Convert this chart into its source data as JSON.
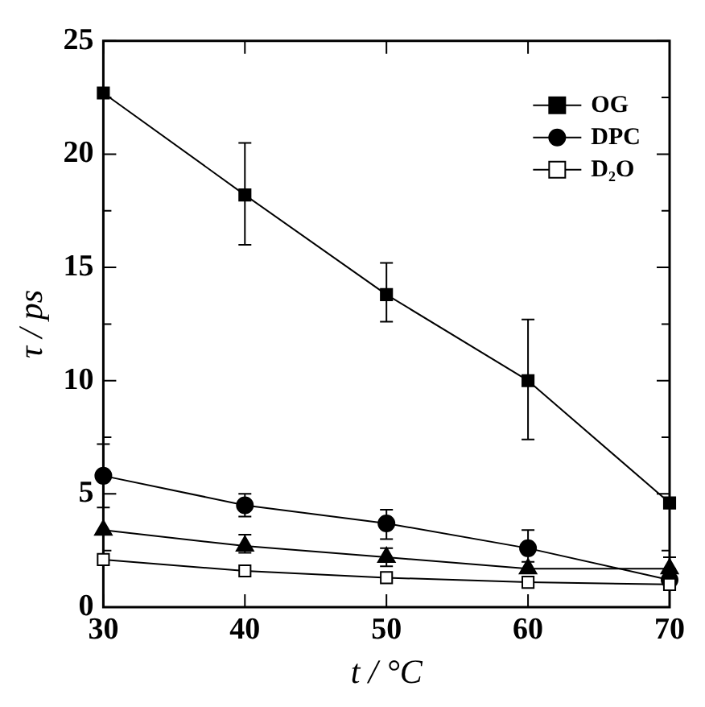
{
  "chart_data": {
    "type": "line",
    "xlabel": "t / °C",
    "ylabel": "τ / ps",
    "x": [
      30,
      40,
      50,
      60,
      70
    ],
    "series": [
      {
        "name": "OG",
        "color": "#000000",
        "marker": "square",
        "values": [
          22.7,
          18.2,
          13.8,
          10.0,
          4.6
        ],
        "errors": [
          null,
          [
            16.0,
            20.5
          ],
          [
            12.6,
            15.2
          ],
          [
            7.4,
            12.7
          ],
          null
        ]
      },
      {
        "color": "#000000",
        "marker": "triangle",
        "values": [
          3.4,
          2.7,
          2.2,
          1.7,
          1.7
        ],
        "errors": [
          null,
          [
            2.4,
            3.2
          ],
          [
            1.8,
            2.6
          ],
          null,
          [
            1.7,
            2.2
          ]
        ]
      },
      {
        "name": "DPC",
        "color": "#000000",
        "marker": "circle",
        "values": [
          5.8,
          4.5,
          3.7,
          2.6,
          1.2
        ],
        "errors": [
          [
            4.4,
            7.2
          ],
          [
            4.0,
            5.0
          ],
          [
            3.0,
            4.3
          ],
          [
            2.0,
            3.4
          ],
          null
        ]
      },
      {
        "name": "D₂O",
        "color": "#ffffff",
        "marker": "square",
        "values": [
          2.1,
          1.6,
          1.3,
          1.1,
          1.0
        ]
      }
    ],
    "xlim": [
      30,
      70
    ],
    "xticks": [
      30,
      40,
      50,
      60,
      70
    ],
    "ylim": [
      0,
      25
    ],
    "yticks": [
      0,
      {
        "value": 2.5,
        "label": null
      },
      5,
      {
        "value": 7.5,
        "label": null
      },
      10,
      {
        "value": 12.5,
        "label": null
      },
      15,
      {
        "value": 17.5,
        "label": null
      },
      20,
      {
        "value": 22.5,
        "label": null
      },
      25
    ],
    "legend": "top right",
    "grid": false
  }
}
